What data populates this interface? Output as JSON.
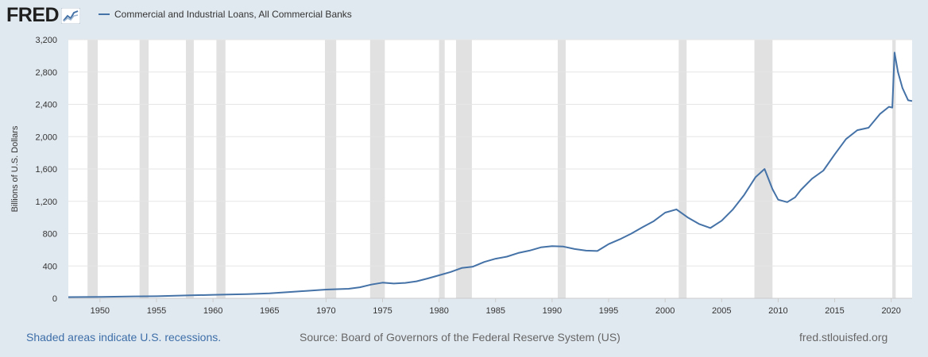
{
  "header": {
    "logo_text": "FRED",
    "accent_color": "#4572a7"
  },
  "chart_data": {
    "type": "line",
    "title": "Commercial and Industrial Loans, All Commercial Banks",
    "xlabel": "",
    "ylabel": "Billions of U.S. Dollars",
    "xlim": [
      1947.2,
      2021.85
    ],
    "ylim": [
      0,
      3200
    ],
    "x_ticks": [
      1950,
      1955,
      1960,
      1965,
      1970,
      1975,
      1980,
      1985,
      1990,
      1995,
      2000,
      2005,
      2010,
      2015,
      2020
    ],
    "y_ticks": [
      0,
      400,
      800,
      1200,
      1600,
      2000,
      2400,
      2800,
      3200
    ],
    "y_tick_labels": [
      "0",
      "400",
      "800",
      "1,200",
      "1,600",
      "2,000",
      "2,400",
      "2,800",
      "3,200"
    ],
    "grid": "horizontal",
    "legend_position": "top-left",
    "line_color": "#4572a7",
    "recession_color": "#e1e1e1",
    "recessions": [
      [
        1948.9,
        1949.8
      ],
      [
        1953.5,
        1954.3
      ],
      [
        1957.6,
        1958.3
      ],
      [
        1960.3,
        1961.1
      ],
      [
        1969.9,
        1970.9
      ],
      [
        1973.9,
        1975.2
      ],
      [
        1980.0,
        1980.5
      ],
      [
        1981.5,
        1982.9
      ],
      [
        1990.5,
        1991.2
      ],
      [
        2001.2,
        2001.9
      ],
      [
        2007.9,
        2009.5
      ],
      [
        2020.1,
        2020.4
      ]
    ],
    "series": [
      {
        "name": "Commercial and Industrial Loans, All Commercial Banks",
        "x": [
          1947.2,
          1950,
          1953,
          1955,
          1958,
          1960,
          1963,
          1965,
          1967,
          1970,
          1972,
          1973,
          1974,
          1975,
          1976,
          1977,
          1978,
          1979,
          1980,
          1981,
          1982,
          1983,
          1984,
          1985,
          1986,
          1987,
          1988,
          1989,
          1990,
          1991,
          1992,
          1993,
          1994,
          1995,
          1996,
          1997,
          1998,
          1999,
          2000,
          2001,
          2002,
          2003,
          2004,
          2005,
          2006,
          2007,
          2008,
          2008.8,
          2009.5,
          2010,
          2010.8,
          2011.5,
          2012,
          2013,
          2014,
          2015,
          2016,
          2017,
          2018,
          2019,
          2019.8,
          2020.1,
          2020.3,
          2020.6,
          2021,
          2021.5,
          2021.85
        ],
        "values": [
          15,
          17,
          24,
          26,
          36,
          43,
          51,
          62,
          80,
          108,
          118,
          136,
          170,
          193,
          183,
          190,
          210,
          245,
          285,
          325,
          375,
          392,
          450,
          490,
          515,
          560,
          590,
          630,
          645,
          640,
          610,
          590,
          585,
          670,
          730,
          800,
          880,
          955,
          1060,
          1100,
          1000,
          920,
          870,
          960,
          1100,
          1280,
          1500,
          1600,
          1350,
          1220,
          1190,
          1250,
          1340,
          1480,
          1580,
          1780,
          1970,
          2080,
          2110,
          2280,
          2370,
          2360,
          3040,
          2800,
          2600,
          2450,
          2440
        ]
      }
    ]
  },
  "footer": {
    "recession_note": "Shaded areas indicate U.S. recessions.",
    "source": "Source: Board of Governors of the Federal Reserve System (US)",
    "site": "fred.stlouisfed.org"
  }
}
